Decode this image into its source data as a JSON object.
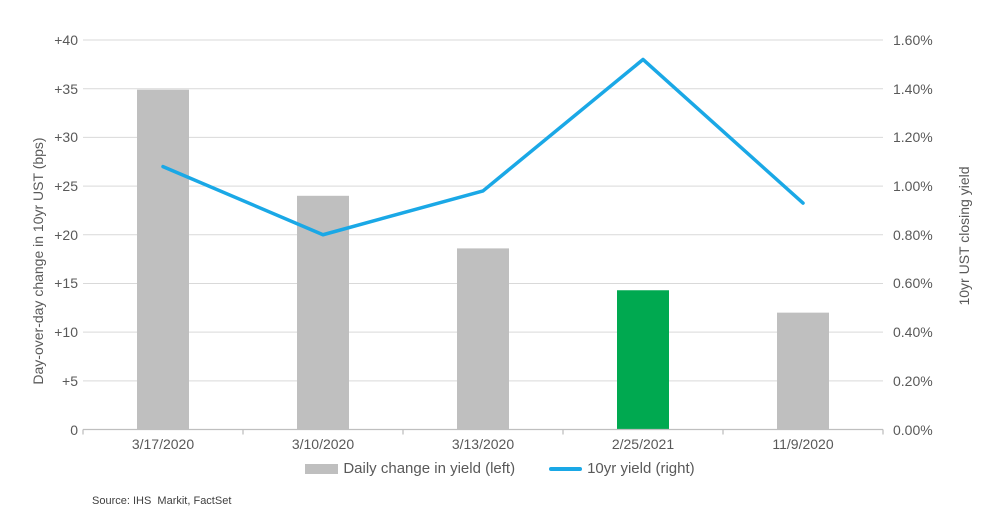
{
  "chart_data": {
    "type": "combo",
    "categories": [
      "3/17/2020",
      "3/10/2020",
      "3/13/2020",
      "2/25/2021",
      "11/9/2020"
    ],
    "series": [
      {
        "name": "Daily change in yield (left)",
        "type": "bar",
        "axis": "left",
        "values": [
          34.9,
          24.0,
          18.6,
          14.3,
          12.0
        ],
        "color": "#BFBFBF",
        "highlight_index": 3,
        "highlight_color": "#00A950"
      },
      {
        "name": "10yr yield (right)",
        "type": "line",
        "axis": "right",
        "values": [
          1.08,
          0.8,
          0.98,
          1.52,
          0.93
        ],
        "color": "#1AA8E6"
      }
    ],
    "left_axis": {
      "title": "Day-over-day change in 10yr UST (bps)",
      "min": 0,
      "max": 40,
      "tick_step": 5,
      "tick_labels": [
        "0",
        "+5",
        "+10",
        "+15",
        "+20",
        "+25",
        "+30",
        "+35",
        "+40"
      ]
    },
    "right_axis": {
      "title": "10yr UST closing yield",
      "min": 0,
      "max": 1.6,
      "tick_step": 0.2,
      "tick_labels": [
        "0.00%",
        "0.20%",
        "0.40%",
        "0.60%",
        "0.80%",
        "1.00%",
        "1.20%",
        "1.40%",
        "1.60%"
      ]
    },
    "grid": true,
    "legend_position": "bottom"
  },
  "legend": {
    "bar_label": "Daily change in yield (left)",
    "line_label": "10yr yield (right)"
  },
  "source": "Source: IHS  Markit, FactSet",
  "colors": {
    "bar": "#BFBFBF",
    "bar_highlight": "#00A950",
    "line": "#1AA8E6",
    "gridline": "#D9D9D9",
    "axis_line": "#BFBFBF",
    "text": "#595959",
    "source_text": "#404040"
  }
}
